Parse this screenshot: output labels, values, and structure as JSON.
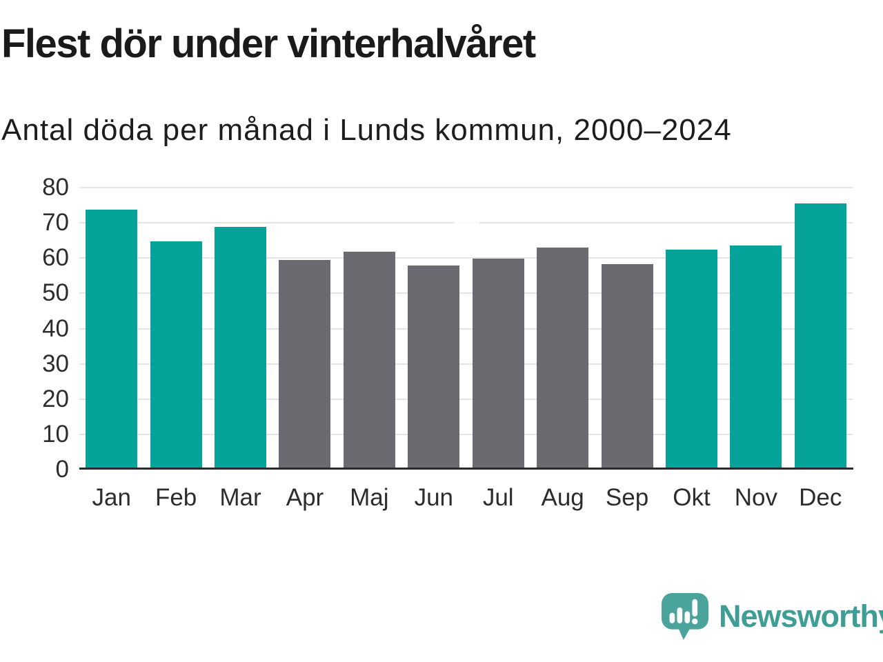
{
  "header": {
    "title": "Flest dör under vinterhalvåret",
    "subtitle": "Antal döda per månad i Lunds kommun, 2000–2024"
  },
  "footer": {
    "brand": "Newsworthy",
    "icon": "newsworthy-speech-bubble-bar-chart-icon"
  },
  "colors": {
    "winter_bar": "#06a39a",
    "summer_bar": "#6b6a70",
    "gridline": "#e4e4e4",
    "axis_line": "#2b2b2b",
    "title_text": "#1a1a1a",
    "axis_text": "#2d2d2d",
    "logo_icon": "#4aa49c",
    "logo_text": "#3e9e96"
  },
  "chart_data": {
    "type": "bar",
    "title": "Flest dör under vinterhalvåret",
    "subtitle": "Antal döda per månad i Lunds kommun, 2000–2024",
    "categories": [
      "Jan",
      "Feb",
      "Mar",
      "Apr",
      "Maj",
      "Jun",
      "Jul",
      "Aug",
      "Sep",
      "Okt",
      "Nov",
      "Dec"
    ],
    "values": [
      73.4,
      64.3,
      68.5,
      59.0,
      61.5,
      57.6,
      59.4,
      62.5,
      57.9,
      62.1,
      63.1,
      75.1
    ],
    "bar_seasons": [
      "winter",
      "winter",
      "winter",
      "summer",
      "summer",
      "summer",
      "summer",
      "summer",
      "summer",
      "winter",
      "winter",
      "winter"
    ],
    "season_colors": {
      "winter": "#06a39a",
      "summer": "#6b6a70"
    },
    "xlabel": "",
    "ylabel": "",
    "ylim": [
      0,
      80
    ],
    "yticks": [
      0,
      10,
      20,
      30,
      40,
      50,
      60,
      70,
      80
    ],
    "grid": true,
    "legend": false
  }
}
